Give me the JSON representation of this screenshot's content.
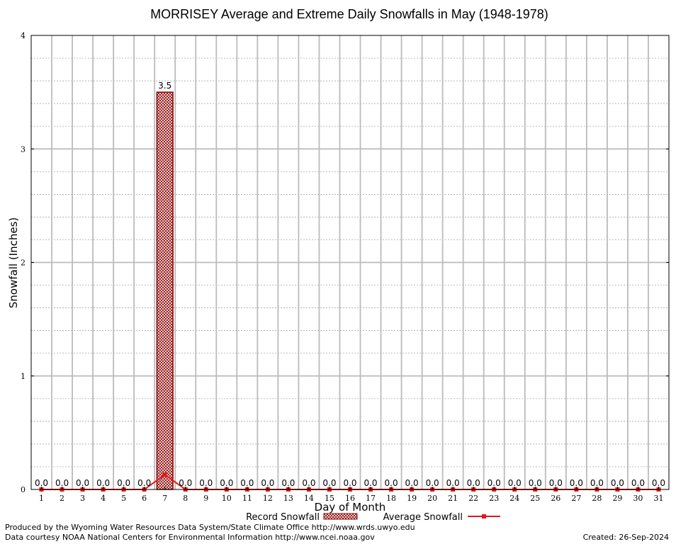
{
  "chart_data": {
    "type": "bar",
    "title": "MORRISEY Average and Extreme Daily Snowfalls in May (1948-1978)",
    "xlabel": "Day of Month",
    "ylabel": "Snowfall (Inches)",
    "ylim": [
      0,
      4
    ],
    "yticks": [
      "0",
      "1",
      "2",
      "3",
      "4"
    ],
    "grid": true,
    "legend_position": "bottom",
    "categories": [
      "1",
      "2",
      "3",
      "4",
      "5",
      "6",
      "7",
      "8",
      "9",
      "10",
      "11",
      "12",
      "13",
      "14",
      "15",
      "16",
      "17",
      "18",
      "19",
      "20",
      "21",
      "22",
      "23",
      "24",
      "25",
      "26",
      "27",
      "28",
      "29",
      "30",
      "31"
    ],
    "series": [
      {
        "name": "Record Snowfall",
        "kind": "bar",
        "color": "#8b0000",
        "values": [
          0,
          0,
          0,
          0,
          0,
          0,
          3.5,
          0,
          0,
          0,
          0,
          0,
          0,
          0,
          0,
          0,
          0,
          0,
          0,
          0,
          0,
          0,
          0,
          0,
          0,
          0,
          0,
          0,
          0,
          0,
          0
        ],
        "labels": [
          "0.0",
          "0.0",
          "0.0",
          "0.0",
          "0.0",
          "0.0",
          "3.5",
          "0.0",
          "0.0",
          "0.0",
          "0.0",
          "0.0",
          "0.0",
          "0.0",
          "0.0",
          "0.0",
          "0.0",
          "0.0",
          "0.0",
          "0.0",
          "0.0",
          "0.0",
          "0.0",
          "0.0",
          "0.0",
          "0.0",
          "0.0",
          "0.0",
          "0.0",
          "0.0",
          "0.0"
        ]
      },
      {
        "name": "Average Snowfall",
        "kind": "line",
        "color": "#e0191a",
        "values": [
          0,
          0,
          0,
          0,
          0,
          0,
          0.13,
          0,
          0,
          0,
          0,
          0,
          0,
          0,
          0,
          0,
          0,
          0,
          0,
          0,
          0,
          0,
          0,
          0,
          0,
          0,
          0,
          0,
          0,
          0,
          0
        ]
      }
    ]
  },
  "footer": {
    "produced_by": "Produced by the Wyoming Water Resources Data System/State Climate Office http://www.wrds.uwyo.edu",
    "data_courtesy": "Data courtesy NOAA National Centers for Environmental Information http://www.ncei.noaa.gov",
    "created": "Created:  26-Sep-2024"
  }
}
